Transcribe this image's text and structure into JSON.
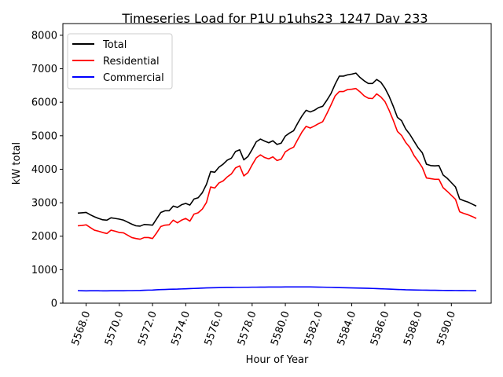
{
  "chart_data": {
    "type": "line",
    "title": "Timeseries Load for P1U p1uhs23_1247  Day 233",
    "xlabel": "Hour of Year",
    "ylabel": "kW total",
    "xlim": [
      5566.6,
      5592.4
    ],
    "ylim": [
      0,
      8350
    ],
    "xticks": [
      5568,
      5570,
      5572,
      5574,
      5576,
      5578,
      5580,
      5582,
      5584,
      5586,
      5588,
      5590
    ],
    "xtick_labels": [
      "5568.0",
      "5570.0",
      "5572.0",
      "5574.0",
      "5576.0",
      "5578.0",
      "5580.0",
      "5582.0",
      "5584.0",
      "5586.0",
      "5588.0",
      "5590.0"
    ],
    "yticks": [
      0,
      1000,
      2000,
      3000,
      4000,
      5000,
      6000,
      7000,
      8000
    ],
    "ytick_labels": [
      "0",
      "1000",
      "2000",
      "3000",
      "4000",
      "5000",
      "6000",
      "7000",
      "8000"
    ],
    "grid": false,
    "legend_position": "top-left",
    "x": [
      5567.5,
      5567.75,
      5568,
      5568.25,
      5568.5,
      5568.75,
      5569,
      5569.25,
      5569.5,
      5569.75,
      5570,
      5570.25,
      5570.5,
      5570.75,
      5571,
      5571.25,
      5571.5,
      5571.75,
      5572,
      5572.25,
      5572.5,
      5572.75,
      5573,
      5573.25,
      5573.5,
      5573.75,
      5574,
      5574.25,
      5574.5,
      5574.75,
      5575,
      5575.25,
      5575.5,
      5575.75,
      5576,
      5576.25,
      5576.5,
      5576.75,
      5577,
      5577.25,
      5577.5,
      5577.75,
      5578,
      5578.25,
      5578.5,
      5578.75,
      5579,
      5579.25,
      5579.5,
      5579.75,
      5580,
      5580.25,
      5580.5,
      5580.75,
      5581,
      5581.25,
      5581.5,
      5581.75,
      5582,
      5582.25,
      5582.5,
      5582.75,
      5583,
      5583.25,
      5583.5,
      5583.75,
      5584,
      5584.25,
      5584.5,
      5584.75,
      5585,
      5585.25,
      5585.5,
      5585.75,
      5586,
      5586.25,
      5586.5,
      5586.75,
      5587,
      5587.25,
      5587.5,
      5587.75,
      5588,
      5588.25,
      5588.5,
      5588.75,
      5589,
      5589.25,
      5589.5,
      5589.75,
      5590,
      5590.25,
      5590.5,
      5590.75,
      5591,
      5591.25,
      5591.5
    ],
    "series": [
      {
        "name": "Total",
        "color": "#000000",
        "values": [
          2690,
          2700,
          2710,
          2640,
          2580,
          2530,
          2490,
          2480,
          2550,
          2530,
          2510,
          2480,
          2420,
          2360,
          2310,
          2300,
          2350,
          2340,
          2330,
          2520,
          2710,
          2760,
          2760,
          2900,
          2860,
          2940,
          2980,
          2930,
          3110,
          3150,
          3300,
          3550,
          3930,
          3910,
          4060,
          4150,
          4270,
          4330,
          4530,
          4580,
          4280,
          4380,
          4590,
          4820,
          4900,
          4840,
          4790,
          4850,
          4740,
          4780,
          4990,
          5080,
          5150,
          5380,
          5590,
          5760,
          5710,
          5760,
          5840,
          5880,
          6060,
          6260,
          6540,
          6780,
          6780,
          6820,
          6840,
          6870,
          6740,
          6640,
          6560,
          6560,
          6680,
          6600,
          6420,
          6180,
          5880,
          5550,
          5450,
          5200,
          5040,
          4840,
          4640,
          4490,
          4150,
          4110,
          4100,
          4110,
          3830,
          3730,
          3600,
          3470,
          3110,
          3060,
          3020,
          2960,
          2900
        ]
      },
      {
        "name": "Residential",
        "color": "#ff0000",
        "values": [
          2310,
          2320,
          2340,
          2260,
          2180,
          2150,
          2110,
          2080,
          2180,
          2150,
          2110,
          2100,
          2030,
          1960,
          1930,
          1910,
          1960,
          1960,
          1930,
          2100,
          2290,
          2330,
          2340,
          2480,
          2400,
          2480,
          2530,
          2450,
          2660,
          2700,
          2810,
          3010,
          3470,
          3440,
          3590,
          3650,
          3770,
          3860,
          4040,
          4100,
          3800,
          3900,
          4130,
          4340,
          4430,
          4350,
          4310,
          4370,
          4260,
          4300,
          4520,
          4600,
          4660,
          4890,
          5110,
          5280,
          5230,
          5290,
          5360,
          5420,
          5660,
          5920,
          6190,
          6320,
          6320,
          6380,
          6390,
          6410,
          6310,
          6190,
          6120,
          6110,
          6250,
          6160,
          6020,
          5760,
          5460,
          5130,
          5010,
          4800,
          4650,
          4410,
          4240,
          4050,
          3740,
          3720,
          3700,
          3700,
          3450,
          3340,
          3220,
          3100,
          2730,
          2680,
          2640,
          2590,
          2530
        ]
      },
      {
        "name": "Commercial",
        "color": "#0000ff",
        "values": [
          375,
          372,
          368,
          370,
          372,
          370,
          368,
          368,
          370,
          370,
          372,
          372,
          375,
          375,
          378,
          380,
          385,
          390,
          392,
          400,
          405,
          410,
          415,
          418,
          420,
          425,
          430,
          435,
          440,
          445,
          450,
          455,
          460,
          462,
          465,
          468,
          470,
          470,
          472,
          472,
          475,
          475,
          478,
          478,
          480,
          480,
          482,
          482,
          483,
          483,
          485,
          485,
          485,
          485,
          486,
          486,
          485,
          483,
          480,
          478,
          475,
          472,
          468,
          465,
          462,
          460,
          455,
          452,
          450,
          448,
          445,
          440,
          435,
          430,
          425,
          420,
          415,
          410,
          405,
          400,
          398,
          395,
          392,
          390,
          388,
          386,
          385,
          383,
          381,
          380,
          379,
          378,
          377,
          376,
          375,
          374,
          373
        ]
      }
    ]
  }
}
